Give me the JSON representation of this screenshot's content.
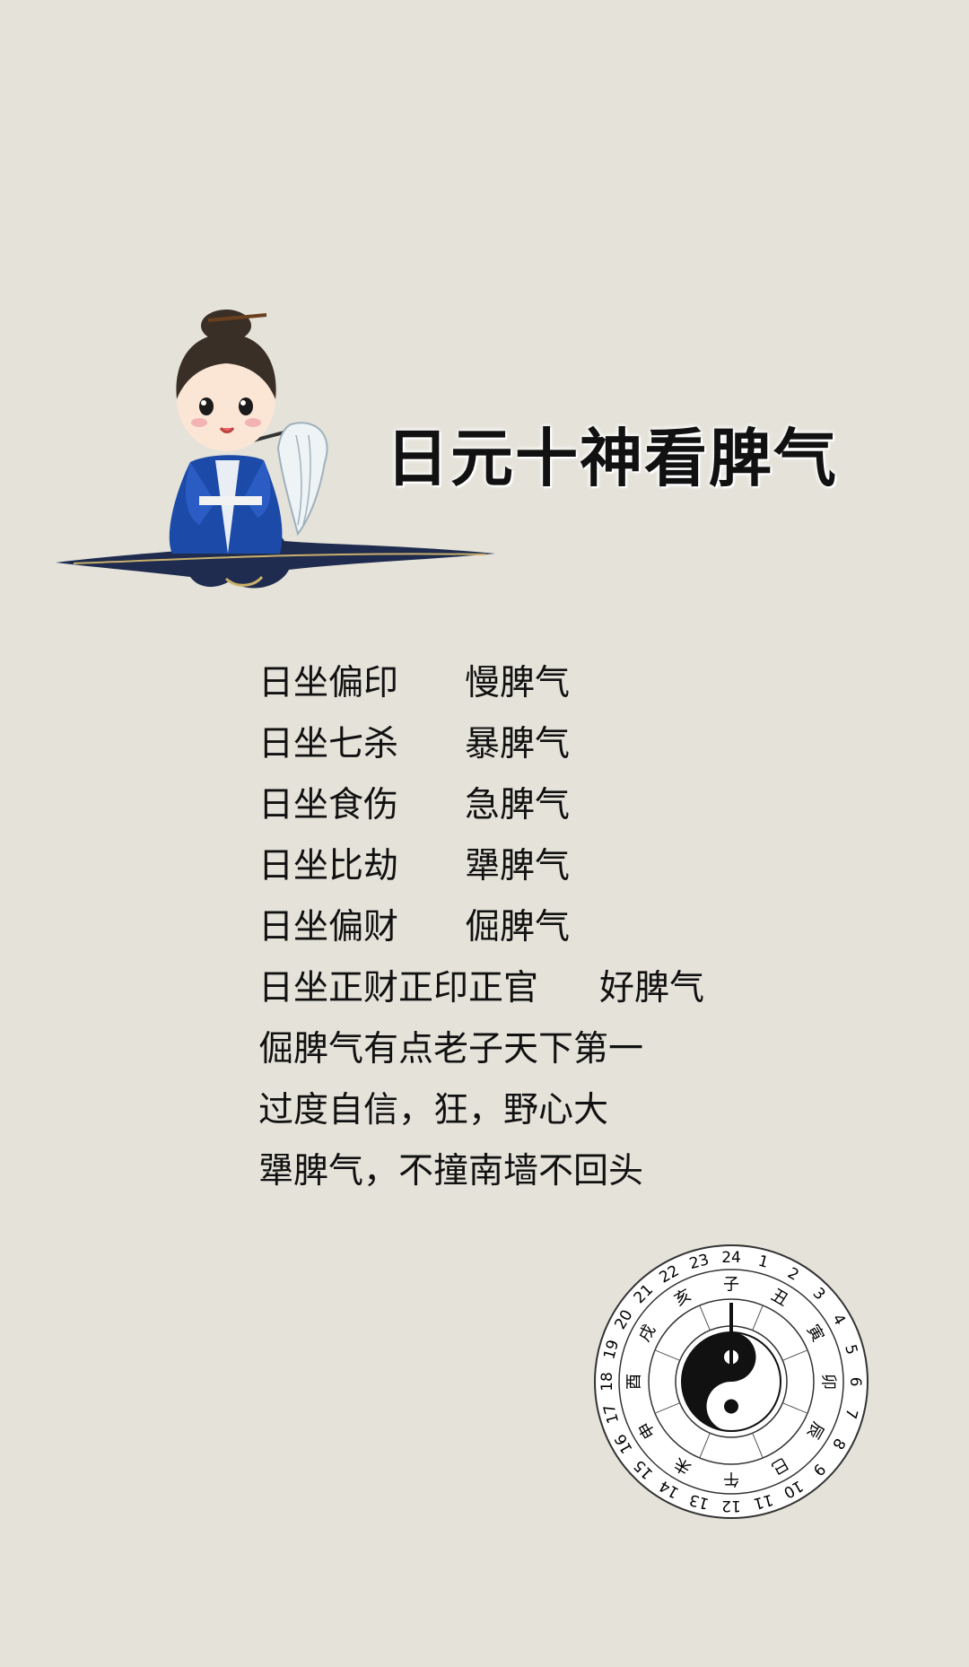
{
  "title": "日元十神看脾气",
  "pairs": [
    {
      "left": "日坐偏印",
      "right": "慢脾气"
    },
    {
      "left": "日坐七杀",
      "right": "暴脾气"
    },
    {
      "left": "日坐食伤",
      "right": "急脾气"
    },
    {
      "left": "日坐比劫",
      "right": "犟脾气"
    },
    {
      "left": "日坐偏财",
      "right": "倔脾气"
    },
    {
      "left": "日坐正财正印正官",
      "right": "好脾气"
    }
  ],
  "notes": [
    "倔脾气有点老子天下第一",
    "过度自信，狂，野心大",
    "犟脾气，不撞南墙不回头"
  ],
  "compass": {
    "numbers": [
      "24",
      "1",
      "2",
      "3",
      "4",
      "5",
      "6",
      "7",
      "8",
      "9",
      "10",
      "11",
      "12",
      "13",
      "14",
      "15",
      "16",
      "17",
      "18",
      "19",
      "20",
      "21",
      "22",
      "23"
    ],
    "branches": [
      "子",
      "丑",
      "寅",
      "卯",
      "辰",
      "巳",
      "午",
      "未",
      "申",
      "酉",
      "戌",
      "亥"
    ]
  }
}
